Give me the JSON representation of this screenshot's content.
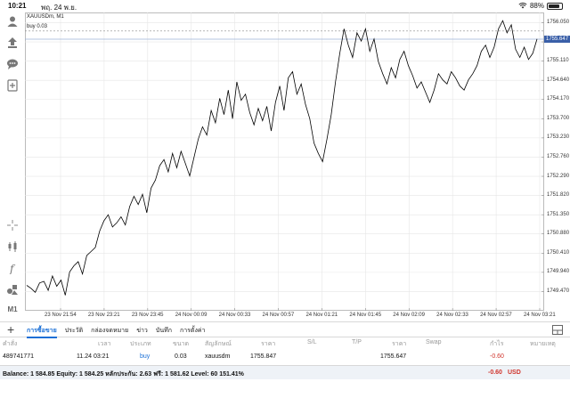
{
  "status_bar": {
    "time": "10:21",
    "date": "พฤ. 24 พ.ย.",
    "battery": "88%",
    "battery_level": 0.88
  },
  "toolbar": {
    "items": [
      {
        "icon": "user-icon"
      },
      {
        "icon": "share-icon"
      },
      {
        "icon": "chat-icon"
      },
      {
        "icon": "add-indicator-icon"
      },
      {
        "icon": "crosshair-icon"
      },
      {
        "icon": "candlestick-icon"
      },
      {
        "icon": "function-icon"
      },
      {
        "icon": "objects-icon"
      }
    ],
    "timeframe": "M1"
  },
  "chart": {
    "symbol_header": "XAUUSDm, M1",
    "buy_line_label": "buy 0.03",
    "current_price_tag": "1755.647",
    "line_color": "#000000",
    "grid_color": "#e6e6e6",
    "buy_line_color": "#8a8a8a",
    "current_price_line_color": "#9bb0d6",
    "price_tag_color": "#3a5fa8"
  },
  "chart_data": {
    "type": "line",
    "title": "XAUUSDm, M1",
    "xlabel": "",
    "ylabel": "",
    "ylim": [
      1749.0,
      1756.3
    ],
    "grid": true,
    "price_ticks": [
      "1756.050",
      "1755.580",
      "1755.110",
      "1754.640",
      "1754.170",
      "1753.700",
      "1753.230",
      "1752.760",
      "1752.290",
      "1751.820",
      "1751.350",
      "1750.880",
      "1750.410",
      "1749.940",
      "1749.470"
    ],
    "time_ticks": [
      "23 Nov 21:54",
      "23 Nov 23:21",
      "23 Nov 23:45",
      "24 Nov 00:09",
      "24 Nov 00:33",
      "24 Nov 00:57",
      "24 Nov 01:21",
      "24 Nov 01:45",
      "24 Nov 02:09",
      "24 Nov 02:33",
      "24 Nov 02:57",
      "24 Nov 03:21"
    ],
    "annotations": [
      {
        "label": "buy 0.03",
        "price": 1755.847
      },
      {
        "label": "1755.647",
        "price": 1755.647
      }
    ],
    "series": [
      {
        "values": [
          1749.62,
          1749.55,
          1749.45,
          1749.68,
          1749.72,
          1749.5,
          1749.85,
          1749.6,
          1749.75,
          1749.38,
          1749.95,
          1750.1,
          1750.2,
          1749.9,
          1750.35,
          1750.45,
          1750.55,
          1750.95,
          1751.2,
          1751.35,
          1751.05,
          1751.15,
          1751.3,
          1751.1,
          1751.55,
          1751.8,
          1751.6,
          1751.85,
          1751.4,
          1752.0,
          1752.2,
          1752.55,
          1752.7,
          1752.4,
          1752.85,
          1752.5,
          1752.9,
          1752.6,
          1752.3,
          1752.75,
          1753.2,
          1753.5,
          1753.3,
          1753.9,
          1753.6,
          1754.2,
          1753.8,
          1754.4,
          1753.7,
          1754.6,
          1754.15,
          1754.3,
          1753.85,
          1753.55,
          1753.95,
          1753.65,
          1754.0,
          1753.4,
          1754.1,
          1754.5,
          1753.9,
          1754.7,
          1754.85,
          1754.3,
          1754.55,
          1754.05,
          1753.7,
          1753.1,
          1752.85,
          1752.65,
          1753.2,
          1753.8,
          1754.6,
          1755.3,
          1755.9,
          1755.5,
          1755.2,
          1755.8,
          1755.6,
          1755.9,
          1755.35,
          1755.65,
          1755.1,
          1754.8,
          1754.55,
          1754.95,
          1754.7,
          1755.15,
          1755.35,
          1755.0,
          1754.75,
          1754.45,
          1754.6,
          1754.35,
          1754.1,
          1754.4,
          1754.8,
          1754.65,
          1754.55,
          1754.85,
          1754.7,
          1754.5,
          1754.4,
          1754.65,
          1754.8,
          1755.0,
          1755.35,
          1755.5,
          1755.2,
          1755.45,
          1755.9,
          1756.1,
          1755.8,
          1756.0,
          1755.4,
          1755.2,
          1755.45,
          1755.15,
          1755.3,
          1755.65
        ]
      }
    ]
  },
  "tabs": {
    "plus": "+",
    "items": [
      "การซื้อขาย",
      "ประวัติ",
      "กล่องจดหมาย",
      "ข่าว",
      "บันทึก",
      "การตั้งค่า"
    ],
    "active_index": 0
  },
  "positions_table": {
    "columns": [
      "คำสั่ง",
      "เวลา",
      "ประเภท",
      "ขนาด",
      "สัญลักษณ์",
      "ราคา",
      "S/L",
      "T/P",
      "ราคา",
      "Swap",
      "กำไร",
      "หมายเหตุ"
    ],
    "rows": [
      {
        "order": "489741771",
        "time": "11.24 03:21",
        "type": "buy",
        "size": "0.03",
        "symbol": "xauusdm",
        "price": "1755.847",
        "sl": "",
        "tp": "",
        "current_price": "1755.647",
        "swap": "",
        "profit": "-0.60",
        "comment": ""
      }
    ]
  },
  "summary": {
    "text": "Balance: 1 584.85 Equity: 1 584.25 หลักประกัน: 2.63 ฟรี: 1 581.62 Level: 60 151.41%",
    "profit": "-0.60",
    "currency": "USD"
  }
}
